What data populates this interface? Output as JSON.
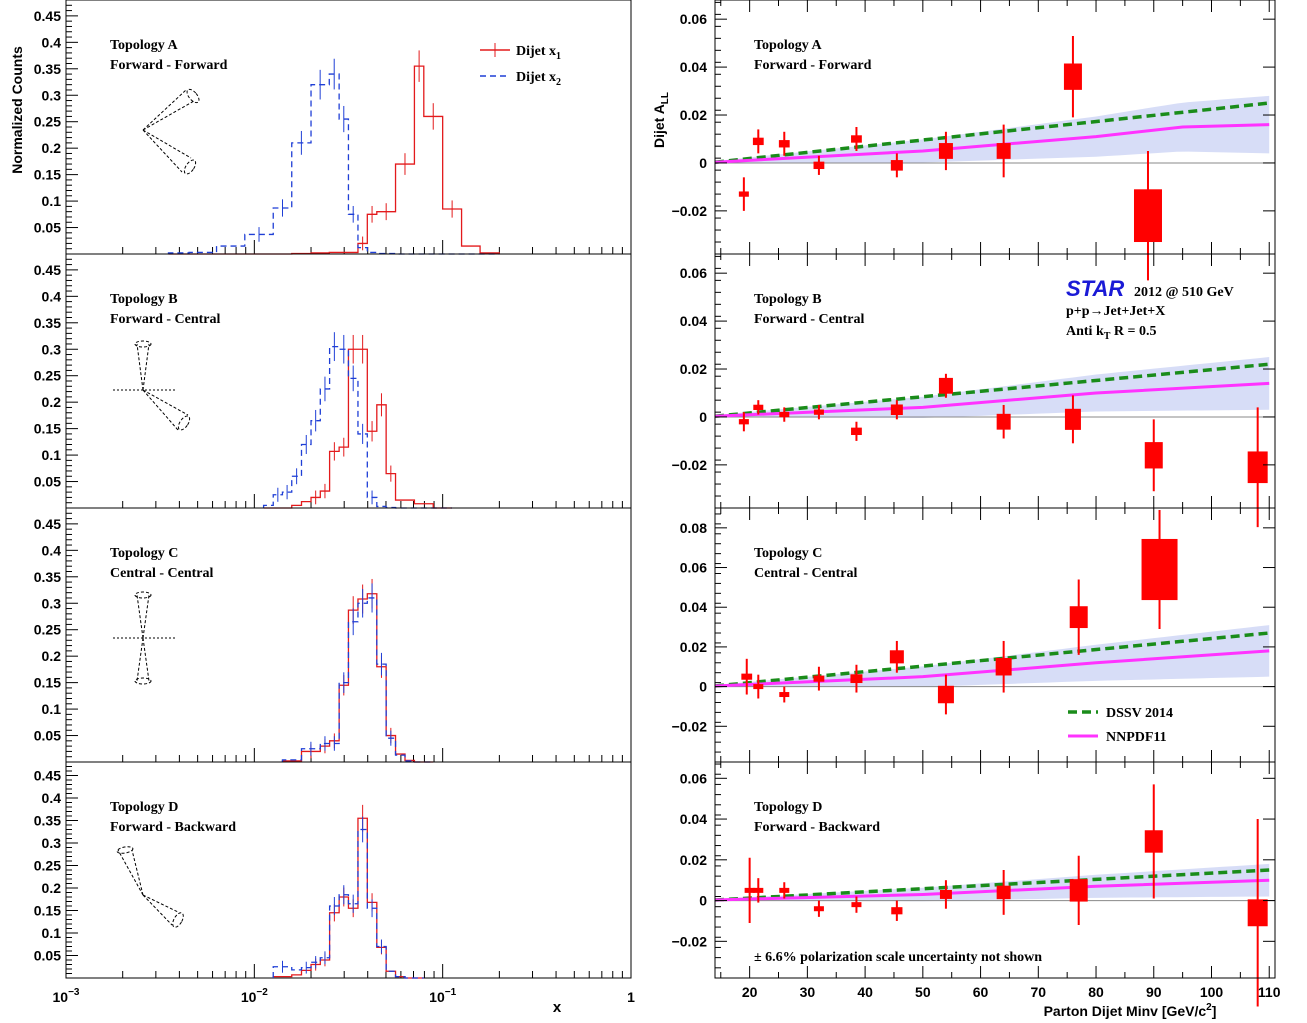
{
  "colors": {
    "x1": "#e31a1c",
    "x2": "#1f3fd6",
    "data": "#ff0000",
    "dssv": "#1a8c1a",
    "nnpdf": "#ff33ff",
    "band": "#8c9ee8",
    "star": "#1a1ad6"
  },
  "left": {
    "ylabel": "Normalized Counts",
    "xlabel": "x",
    "xticks": [
      {
        "v": 0.001,
        "b": "10",
        "e": "−3"
      },
      {
        "v": 0.01,
        "b": "10",
        "e": "−2"
      },
      {
        "v": 0.1,
        "b": "10",
        "e": "−1"
      },
      {
        "v": 1,
        "b": "1",
        "e": ""
      }
    ],
    "yticks": [
      "0.05",
      "0.1",
      "0.15",
      "0.2",
      "0.25",
      "0.3",
      "0.35",
      "0.4",
      "0.45"
    ],
    "legend": {
      "x1_label": "Dijet x",
      "x1_sub": "1",
      "x2_label": "Dijet x",
      "x2_sub": "2"
    }
  },
  "right": {
    "ylabel": "Dijet A",
    "ylabel_sub": "LL",
    "xlabel": "Parton Dijet Minv [GeV/c",
    "xlabel_sup": "2",
    "xlabel_end": "]",
    "xticks": [
      "20",
      "30",
      "40",
      "50",
      "60",
      "70",
      "80",
      "90",
      "100",
      "110"
    ],
    "star_logo": "STAR",
    "star_text": "2012 @ 510 GeV",
    "reaction": "p+p→Jet+Jet+X",
    "algo": "Anti k",
    "algo_sub": "T",
    "algo_end": " R = 0.5",
    "legend": {
      "dssv": "DSSV 2014",
      "nnpdf": "NNPDF11"
    },
    "footnote": "± 6.6% polarization scale uncertainty not shown"
  },
  "topologies": [
    {
      "title": "Topology A",
      "subtitle": "Forward - Forward"
    },
    {
      "title": "Topology B",
      "subtitle": "Forward - Central"
    },
    {
      "title": "Topology C",
      "subtitle": "Central - Central"
    },
    {
      "title": "Topology D",
      "subtitle": "Forward - Backward"
    }
  ],
  "chart_data": [
    {
      "type": "histogram",
      "panel": "Topology A",
      "xscale": "log",
      "xlim": [
        0.001,
        1
      ],
      "ylim": [
        0,
        0.48
      ],
      "bin_edges": [
        0.0035,
        0.0045,
        0.0063,
        0.0089,
        0.0126,
        0.0158,
        0.02,
        0.025,
        0.0282,
        0.0316,
        0.0355,
        0.0398,
        0.0447,
        0.0562,
        0.0708,
        0.0794,
        0.1,
        0.126,
        0.158,
        0.2
      ],
      "series": [
        {
          "name": "Dijet x1",
          "values": [
            0,
            0,
            0,
            0,
            0,
            0.001,
            0.002,
            0.003,
            0.003,
            0.003,
            0.02,
            0.075,
            0.08,
            0.17,
            0.355,
            0.26,
            0.085,
            0.015,
            0.002
          ]
        },
        {
          "name": "Dijet x2",
          "values": [
            0.002,
            0.003,
            0.015,
            0.037,
            0.087,
            0.21,
            0.32,
            0.34,
            0.255,
            0.075,
            0.012,
            0.003,
            0.001,
            0,
            0,
            0,
            0,
            0,
            0
          ]
        }
      ]
    },
    {
      "type": "histogram",
      "panel": "Topology B",
      "xscale": "log",
      "xlim": [
        0.001,
        1
      ],
      "ylim": [
        0,
        0.48
      ],
      "bin_edges": [
        0.0112,
        0.0126,
        0.0141,
        0.0158,
        0.0178,
        0.02,
        0.0224,
        0.0251,
        0.0282,
        0.0316,
        0.0355,
        0.0398,
        0.0447,
        0.0501,
        0.0562,
        0.0708,
        0.0891,
        0.112
      ],
      "series": [
        {
          "name": "Dijet x1",
          "values": [
            0,
            0,
            0,
            0.005,
            0.012,
            0.02,
            0.032,
            0.107,
            0.115,
            0.3,
            0.3,
            0.145,
            0.195,
            0.065,
            0.015,
            0.008,
            0
          ]
        },
        {
          "name": "Dijet x2",
          "values": [
            0.005,
            0.025,
            0.03,
            0.06,
            0.12,
            0.165,
            0.225,
            0.305,
            0.3,
            0.245,
            0.14,
            0.02,
            0.003,
            0.001,
            0,
            0,
            0
          ]
        }
      ]
    },
    {
      "type": "histogram",
      "panel": "Topology C",
      "xscale": "log",
      "xlim": [
        0.001,
        1
      ],
      "ylim": [
        0,
        0.48
      ],
      "bin_edges": [
        0.0141,
        0.0178,
        0.0224,
        0.0251,
        0.0282,
        0.0316,
        0.0355,
        0.0398,
        0.0447,
        0.0501,
        0.0562,
        0.0631,
        0.0708,
        0.0794,
        0.0891
      ],
      "series": [
        {
          "name": "Dijet x1",
          "values": [
            0.002,
            0.02,
            0.03,
            0.04,
            0.145,
            0.287,
            0.308,
            0.318,
            0.18,
            0.05,
            0.015,
            0.003,
            0,
            0
          ]
        },
        {
          "name": "Dijet x2",
          "values": [
            0.004,
            0.025,
            0.035,
            0.035,
            0.15,
            0.265,
            0.3,
            0.31,
            0.185,
            0.045,
            0.013,
            0.002,
            0,
            0
          ]
        }
      ]
    },
    {
      "type": "histogram",
      "panel": "Topology D",
      "xscale": "log",
      "xlim": [
        0.001,
        1
      ],
      "ylim": [
        0,
        0.48
      ],
      "bin_edges": [
        0.0126,
        0.0158,
        0.0178,
        0.02,
        0.0224,
        0.0251,
        0.0282,
        0.0316,
        0.0355,
        0.0398,
        0.0447,
        0.0501,
        0.0562,
        0.0631,
        0.0708,
        0.0794
      ],
      "series": [
        {
          "name": "Dijet x1",
          "values": [
            0.003,
            0.007,
            0.017,
            0.03,
            0.04,
            0.145,
            0.18,
            0.155,
            0.355,
            0.168,
            0.068,
            0.015,
            0.003,
            0,
            0
          ]
        },
        {
          "name": "Dijet x2",
          "values": [
            0.025,
            0.018,
            0.023,
            0.035,
            0.045,
            0.16,
            0.185,
            0.165,
            0.33,
            0.155,
            0.07,
            0.015,
            0.003,
            0,
            0
          ]
        }
      ]
    },
    {
      "type": "scatter",
      "panel": "Topology A",
      "xlim": [
        14,
        111
      ],
      "ylim": [
        -0.038,
        0.068
      ],
      "yticks": [
        -0.02,
        0,
        0.02,
        0.04,
        0.06
      ],
      "points": [
        {
          "x": 19,
          "y": -0.013,
          "err": 0.007,
          "sys": 0.0005
        },
        {
          "x": 21.5,
          "y": 0.009,
          "err": 0.005,
          "sys": 0.0007
        },
        {
          "x": 26,
          "y": 0.008,
          "err": 0.005,
          "sys": 0.0007
        },
        {
          "x": 32,
          "y": -0.001,
          "err": 0.004,
          "sys": 0.0007
        },
        {
          "x": 38.5,
          "y": 0.01,
          "err": 0.005,
          "sys": 0.0007
        },
        {
          "x": 45.5,
          "y": -0.001,
          "err": 0.005,
          "sys": 0.001
        },
        {
          "x": 54,
          "y": 0.005,
          "err": 0.008,
          "sys": 0.0015
        },
        {
          "x": 64,
          "y": 0.005,
          "err": 0.011,
          "sys": 0.0015
        },
        {
          "x": 76,
          "y": 0.036,
          "err": 0.017,
          "sys": 0.0025
        },
        {
          "x": 89,
          "y": -0.022,
          "err": 0.027,
          "sys": 0.005
        }
      ],
      "dssv": [
        [
          14,
          0.0003
        ],
        [
          110,
          0.025
        ]
      ],
      "nnpdf": [
        [
          14,
          0.0003
        ],
        [
          50,
          0.005
        ],
        [
          80,
          0.011
        ],
        [
          95,
          0.015
        ],
        [
          110,
          0.016
        ]
      ],
      "band_halfwidth": [
        [
          14,
          0.0005
        ],
        [
          110,
          0.012
        ]
      ]
    },
    {
      "type": "scatter",
      "panel": "Topology B",
      "xlim": [
        14,
        111
      ],
      "ylim": [
        -0.038,
        0.068
      ],
      "yticks": [
        -0.02,
        0,
        0.02,
        0.04,
        0.06
      ],
      "points": [
        {
          "x": 19,
          "y": -0.002,
          "err": 0.004,
          "sys": 0.0005
        },
        {
          "x": 21.5,
          "y": 0.004,
          "err": 0.003,
          "sys": 0.0005
        },
        {
          "x": 26,
          "y": 0.001,
          "err": 0.003,
          "sys": 0.0005
        },
        {
          "x": 32,
          "y": 0.002,
          "err": 0.003,
          "sys": 0.0005
        },
        {
          "x": 38.5,
          "y": -0.006,
          "err": 0.004,
          "sys": 0.0007
        },
        {
          "x": 45.5,
          "y": 0.003,
          "err": 0.004,
          "sys": 0.001
        },
        {
          "x": 54,
          "y": 0.013,
          "err": 0.005,
          "sys": 0.0015
        },
        {
          "x": 64,
          "y": -0.002,
          "err": 0.007,
          "sys": 0.0015
        },
        {
          "x": 76,
          "y": -0.001,
          "err": 0.01,
          "sys": 0.002
        },
        {
          "x": 90,
          "y": -0.016,
          "err": 0.015,
          "sys": 0.0025
        },
        {
          "x": 108,
          "y": -0.021,
          "err": 0.025,
          "sys": 0.003
        }
      ],
      "dssv": [
        [
          14,
          0.0003
        ],
        [
          110,
          0.022
        ]
      ],
      "nnpdf": [
        [
          14,
          0.0003
        ],
        [
          50,
          0.004
        ],
        [
          80,
          0.01
        ],
        [
          110,
          0.014
        ]
      ],
      "band_halfwidth": [
        [
          14,
          0.0005
        ],
        [
          110,
          0.011
        ]
      ]
    },
    {
      "type": "scatter",
      "panel": "Topology C",
      "xlim": [
        14,
        111
      ],
      "ylim": [
        -0.038,
        0.09
      ],
      "yticks": [
        -0.02,
        0,
        0.02,
        0.04,
        0.06,
        0.08
      ],
      "points": [
        {
          "x": 19.5,
          "y": 0.005,
          "err": 0.009,
          "sys": 0.0007
        },
        {
          "x": 21.5,
          "y": 0,
          "err": 0.006,
          "sys": 0.0005
        },
        {
          "x": 26,
          "y": -0.004,
          "err": 0.004,
          "sys": 0.0005
        },
        {
          "x": 32,
          "y": 0.004,
          "err": 0.006,
          "sys": 0.0007
        },
        {
          "x": 38.5,
          "y": 0.004,
          "err": 0.007,
          "sys": 0.001
        },
        {
          "x": 45.5,
          "y": 0.015,
          "err": 0.008,
          "sys": 0.0015
        },
        {
          "x": 54,
          "y": -0.004,
          "err": 0.01,
          "sys": 0.002
        },
        {
          "x": 64,
          "y": 0.01,
          "err": 0.013,
          "sys": 0.002
        },
        {
          "x": 77,
          "y": 0.035,
          "err": 0.019,
          "sys": 0.0025
        },
        {
          "x": 91,
          "y": 0.059,
          "err": 0.03,
          "sys": 0.007
        }
      ],
      "dssv": [
        [
          14,
          0.0003
        ],
        [
          110,
          0.027
        ]
      ],
      "nnpdf": [
        [
          14,
          0.0003
        ],
        [
          50,
          0.005
        ],
        [
          80,
          0.012
        ],
        [
          110,
          0.018
        ]
      ],
      "band_halfwidth": [
        [
          14,
          0.0005
        ],
        [
          110,
          0.013
        ]
      ]
    },
    {
      "type": "scatter",
      "panel": "Topology D",
      "xlim": [
        14,
        111
      ],
      "ylim": [
        -0.038,
        0.068
      ],
      "yticks": [
        -0.02,
        0,
        0.02,
        0.04,
        0.06
      ],
      "points": [
        {
          "x": 20,
          "y": 0.005,
          "err": 0.016,
          "sys": 0.0005
        },
        {
          "x": 21.5,
          "y": 0.005,
          "err": 0.006,
          "sys": 0.0005
        },
        {
          "x": 26,
          "y": 0.005,
          "err": 0.004,
          "sys": 0.0005
        },
        {
          "x": 32,
          "y": -0.004,
          "err": 0.004,
          "sys": 0.0005
        },
        {
          "x": 38.5,
          "y": -0.002,
          "err": 0.004,
          "sys": 0.0005
        },
        {
          "x": 45.5,
          "y": -0.005,
          "err": 0.005,
          "sys": 0.0008
        },
        {
          "x": 54,
          "y": 0.003,
          "err": 0.007,
          "sys": 0.001
        },
        {
          "x": 64,
          "y": 0.004,
          "err": 0.011,
          "sys": 0.0015
        },
        {
          "x": 77,
          "y": 0.005,
          "err": 0.017,
          "sys": 0.0025
        },
        {
          "x": 90,
          "y": 0.029,
          "err": 0.028,
          "sys": 0.0025
        },
        {
          "x": 108,
          "y": -0.006,
          "err": 0.046,
          "sys": 0.003
        }
      ],
      "dssv": [
        [
          14,
          0.0003
        ],
        [
          110,
          0.015
        ]
      ],
      "nnpdf": [
        [
          14,
          0.0003
        ],
        [
          50,
          0.003
        ],
        [
          80,
          0.007
        ],
        [
          110,
          0.01
        ]
      ],
      "band_halfwidth": [
        [
          14,
          0.0005
        ],
        [
          110,
          0.008
        ]
      ]
    }
  ]
}
